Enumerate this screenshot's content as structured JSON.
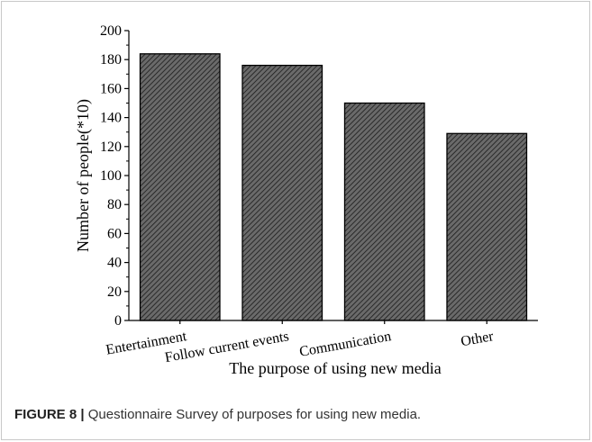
{
  "chart_data": {
    "type": "bar",
    "categories": [
      "Entertainment",
      "Follow current events",
      "Communication",
      "Other"
    ],
    "values": [
      184,
      176,
      150,
      129
    ],
    "title": "",
    "xlabel": "The purpose of using new media",
    "ylabel": "Number of people(*10)",
    "ylim": [
      0,
      200
    ],
    "yticks": [
      0,
      20,
      40,
      60,
      80,
      100,
      120,
      140,
      160,
      180,
      200
    ],
    "bar_fill": "hatched-dark-gray",
    "bar_color": "#555555",
    "grid": false,
    "legend": "none"
  },
  "caption": {
    "label": "FIGURE 8 |",
    "text": " Questionnaire Survey of purposes for using new media."
  }
}
